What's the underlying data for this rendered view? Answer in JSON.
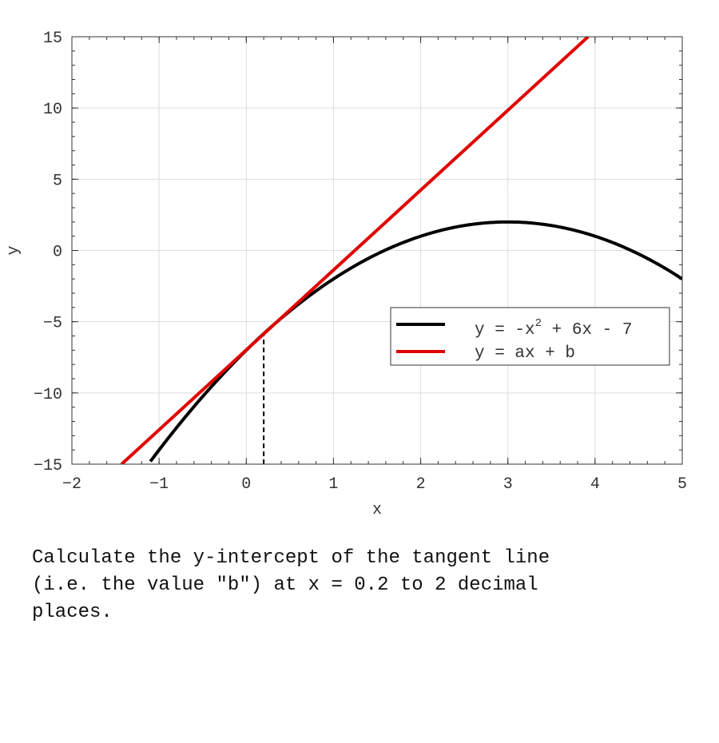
{
  "chart_data": {
    "type": "line",
    "xlabel": "x",
    "ylabel": "y",
    "xlim": [
      -2,
      5
    ],
    "ylim": [
      -15,
      15
    ],
    "xticks": [
      -2,
      -1,
      0,
      1,
      2,
      3,
      4,
      5
    ],
    "yticks": [
      -15,
      -10,
      -5,
      0,
      5,
      10,
      15
    ],
    "grid": true,
    "legend_position": "center-right",
    "series": [
      {
        "name": "y = -x^2 + 6x - 7",
        "label_main": "y = -x",
        "label_exp": "2",
        "label_rest": " + 6x - 7",
        "color": "#000000",
        "curve": "quadratic",
        "coefficients": [
          -1,
          6,
          -7
        ],
        "x": [
          -1.1,
          -1.0,
          -0.5,
          0.0,
          0.2,
          0.5,
          1.0,
          1.5,
          2.0,
          2.5,
          3.0,
          3.5,
          4.0,
          4.5,
          5.0
        ],
        "y": [
          -14.81,
          -14.0,
          -10.25,
          -7.0,
          -5.84,
          -4.25,
          -2.0,
          -0.25,
          1.0,
          1.75,
          2.0,
          1.75,
          1.0,
          -0.25,
          -2.0
        ]
      },
      {
        "name": "y = ax + b",
        "color": "#e00000",
        "curve": "linear",
        "x": [
          -1.43,
          3.92
        ],
        "y": [
          -15.0,
          15.0
        ]
      }
    ],
    "markers": [
      {
        "type": "vertical-dashed",
        "x": 0.2,
        "y_from": -15,
        "y_to": -5.84
      }
    ]
  },
  "question": "Calculate the y-intercept of the tangent line\n(i.e. the value \"b\") at x = 0.2 to 2 decimal\nplaces."
}
